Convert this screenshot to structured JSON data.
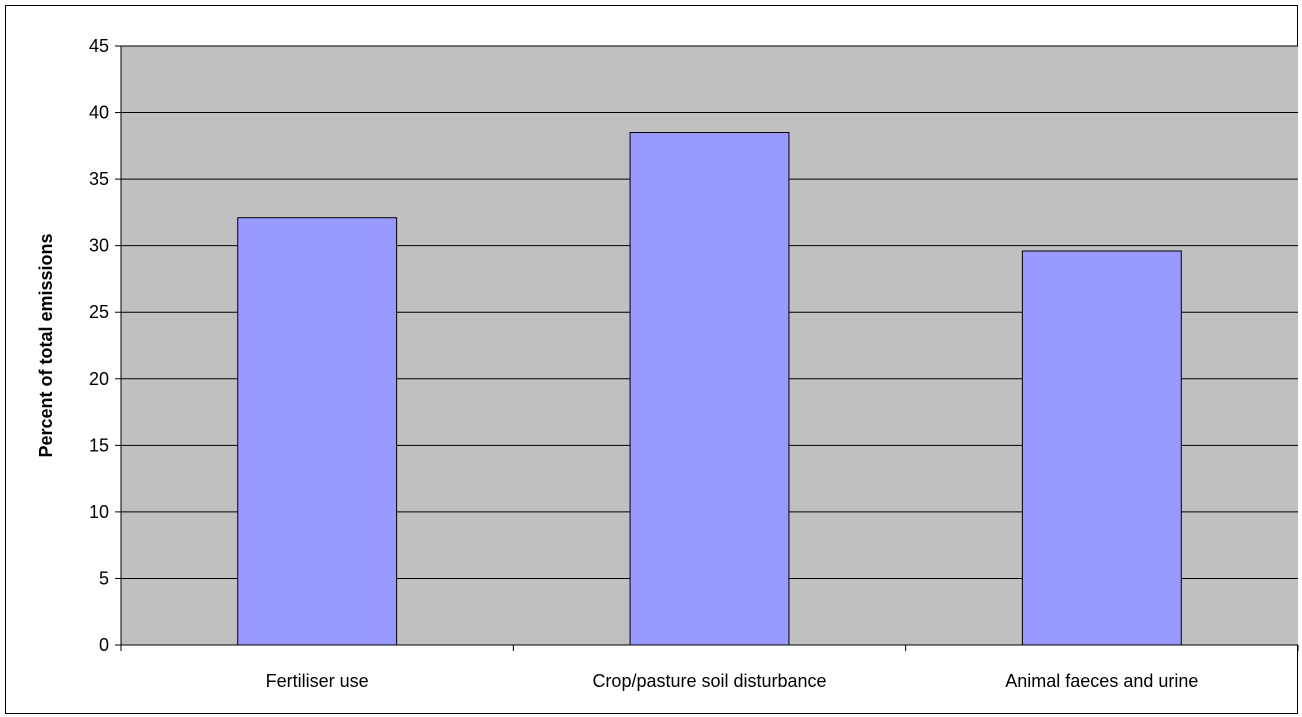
{
  "chart_data": {
    "type": "bar",
    "title": "",
    "xlabel": "",
    "ylabel": "Percent of total emissions",
    "categories": [
      "Fertiliser use",
      "Crop/pasture soil disturbance",
      "Animal faeces and urine"
    ],
    "values": [
      32.1,
      38.5,
      29.6
    ],
    "ylim": [
      0,
      45
    ],
    "yticks": [
      "0",
      "5",
      "10",
      "15",
      "20",
      "25",
      "30",
      "35",
      "40",
      "45"
    ],
    "grid": true,
    "legend": "none",
    "colors": {
      "plot_background": "#c0c0c0",
      "bar_fill": "#9999ff",
      "bar_stroke": "#000000",
      "grid": "#000000"
    }
  }
}
